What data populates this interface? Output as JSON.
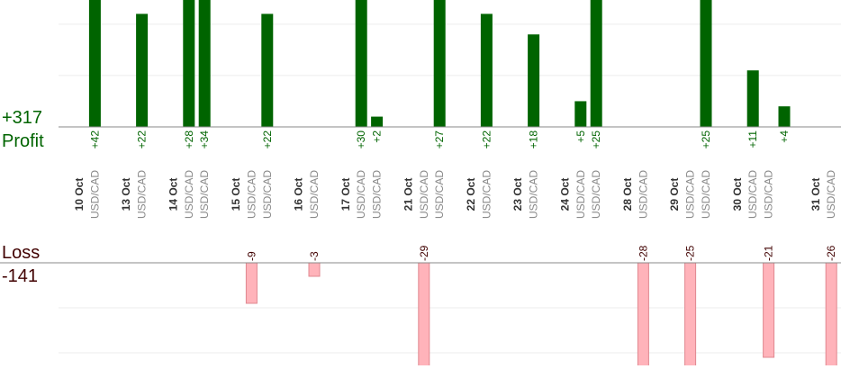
{
  "chart_data": {
    "type": "bar",
    "profit_label": "Profit",
    "loss_label": "Loss",
    "profit_total": {
      "value": 317,
      "label": "+317"
    },
    "loss_total": -141,
    "dates": [
      "10 Oct",
      "13 Oct",
      "14 Oct",
      null,
      "15 Oct",
      null,
      "16 Oct",
      "17 Oct",
      null,
      "21 Oct",
      null,
      "22 Oct",
      "23 Oct",
      "24 Oct",
      null,
      "28 Oct",
      "29 Oct",
      null,
      "30 Oct",
      null,
      null,
      "31 Oct"
    ],
    "categories": [
      "USD/CAD",
      "USD/CAD",
      "USD/CAD",
      "USD/CAD",
      "USD/CAD",
      "USD/CAD",
      "USD/CAD",
      "USD/CAD",
      "USD/CAD",
      "USD/CAD",
      "USD/CAD",
      "USD/CAD",
      "USD/CAD",
      "USD/CAD",
      "USD/CAD",
      "USD/CAD",
      "USD/CAD",
      "USD/CAD",
      "USD/CAD",
      "USD/CAD",
      null,
      "USD/CAD"
    ],
    "values": [
      42,
      22,
      28,
      34,
      -9,
      22,
      -3,
      30,
      2,
      -29,
      27,
      22,
      18,
      5,
      25,
      -28,
      -25,
      25,
      11,
      -21,
      4,
      -26
    ],
    "value_labels": [
      "+42",
      "+22",
      "+28",
      "+34",
      "-9",
      "+22",
      "-3",
      "+30",
      "+2",
      "-29",
      "+27",
      "+22",
      "+18",
      "+5",
      "+25",
      "-28",
      "-25",
      "+25",
      "+11",
      "-21",
      "+4",
      "-26"
    ],
    "profit_color": "#006400",
    "loss_color": "#ffb3ba",
    "profit_ylim": [
      0,
      24.7
    ],
    "profit_grid": [
      10,
      20
    ],
    "loss_ylim": [
      -22.8,
      0
    ],
    "loss_grid": [
      -10,
      -20
    ]
  }
}
